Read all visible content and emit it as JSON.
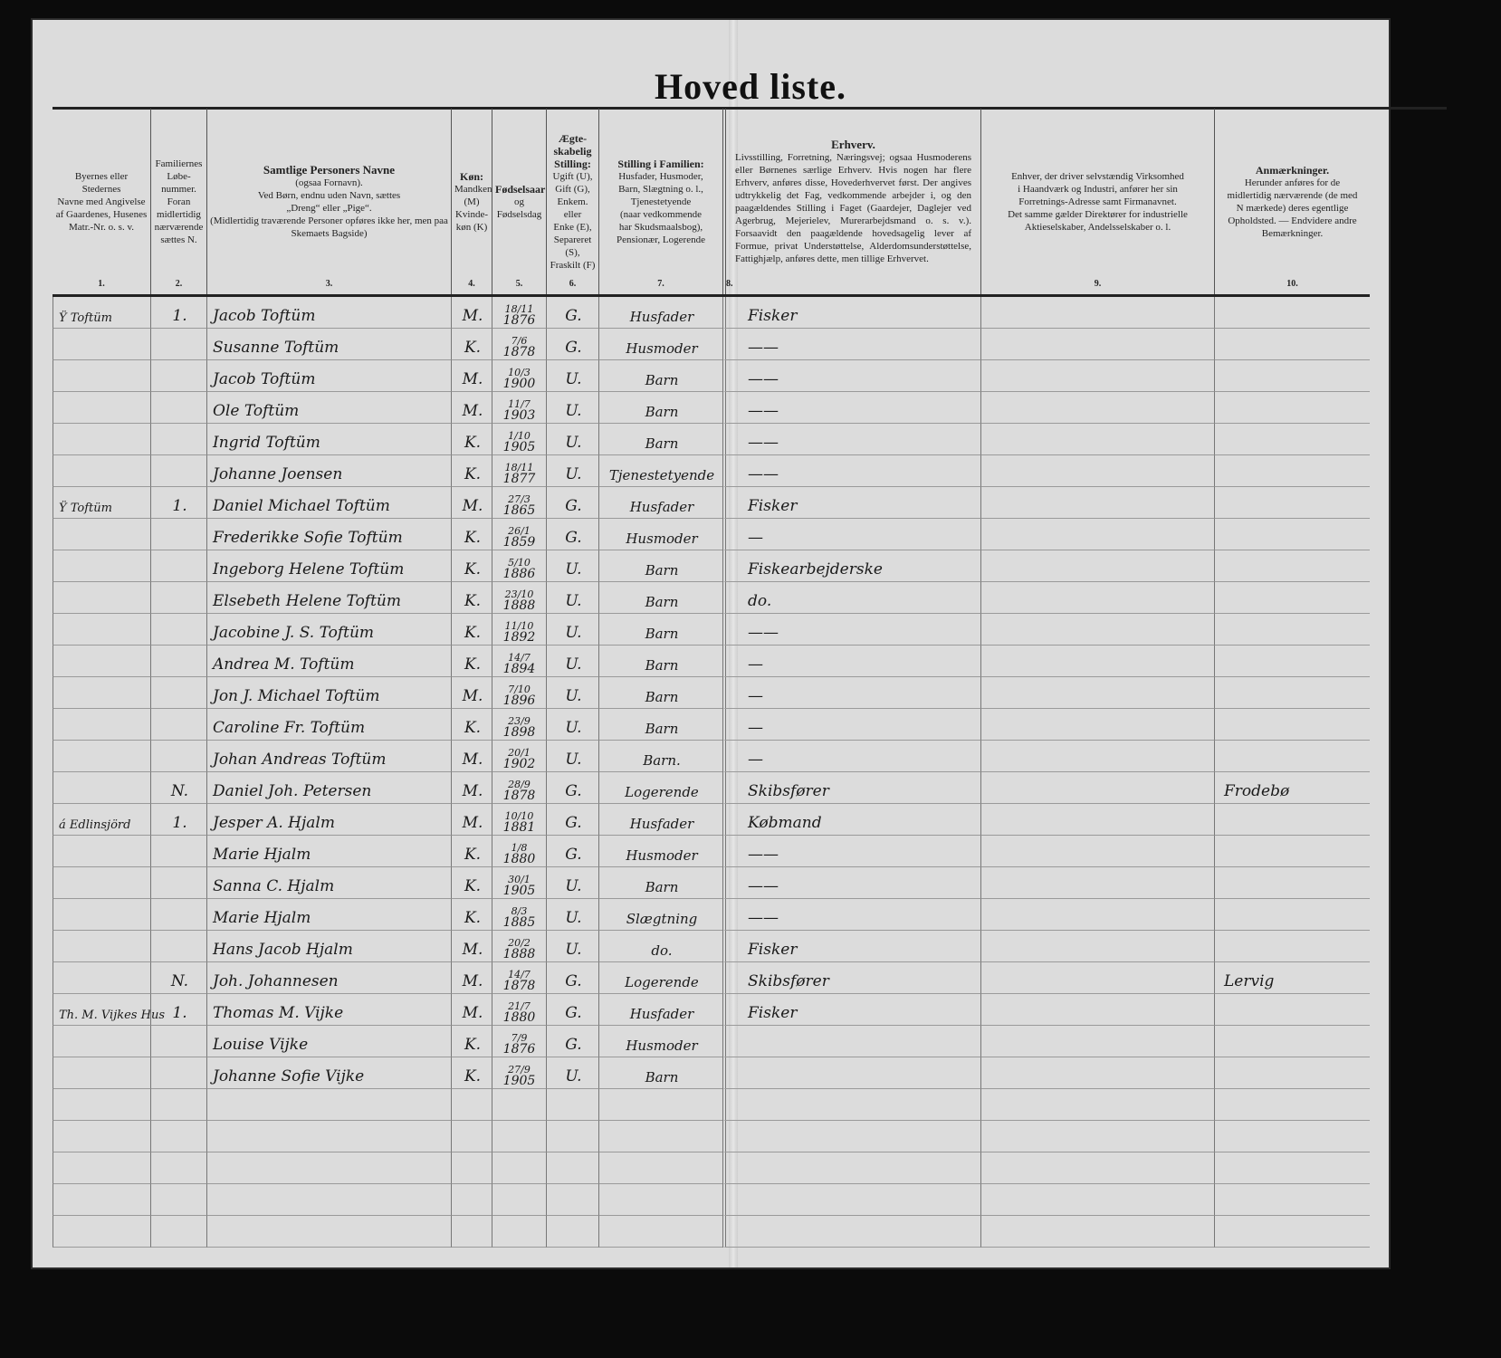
{
  "title": "Hoved liste.",
  "columns": [
    {
      "number": "1.",
      "lines": [
        "Byernes eller Stedernes",
        "Navne med Angivelse",
        "af Gaardenes, Husenes",
        "Matr.-Nr. o. s. v."
      ]
    },
    {
      "number": "2.",
      "lines": [
        "Familiernes",
        "Løbe-",
        "nummer.",
        "Foran",
        "midlertidig",
        "nærværende",
        "sættes N."
      ]
    },
    {
      "number": "3.",
      "heading": "Samtlige Personers Navne",
      "lines": [
        "(ogsaa Fornavn).",
        "Ved Børn, endnu uden Navn, sættes",
        "„Dreng“ eller „Pige“.",
        "(Midlertidig traværende Personer opføres ikke her, men paa Skemaets Bagside)"
      ]
    },
    {
      "number": "4.",
      "heading": "Køn:",
      "lines": [
        "Mandken",
        "(M)",
        "Kvinde-",
        "køn (K)"
      ]
    },
    {
      "number": "5.",
      "heading": "Fødselsaar",
      "lines": [
        "og",
        "Fødselsdag"
      ]
    },
    {
      "number": "6.",
      "heading": "Ægte-skabelig Stilling:",
      "lines": [
        "Ugift (U),",
        "Gift (G),",
        "Enkem. eller",
        "Enke (E),",
        "Separeret",
        "(S),",
        "Fraskilt (F)"
      ]
    },
    {
      "number": "7.",
      "heading": "Stilling i Familien:",
      "lines": [
        "Husfader, Husmoder,",
        "Barn, Slægtning o. l.,",
        "Tjenestetyende",
        "(naar vedkommende",
        "har Skudsmaalsbog),",
        "Pensionær, Logerende"
      ]
    },
    {
      "number": "8.",
      "heading": "Erhverv.",
      "lines": [
        "Livsstilling, Forretning, Næringsvej; ogsaa Husmoderens eller Børnenes særlige Erhverv. Hvis nogen har flere Erhverv, anføres disse, Hovederhvervet først. Der angives udtrykkelig det Fag, vedkommende arbejder i, og den paagældendes Stilling i Faget (Gaardejer, Daglejer ved Agerbrug, Mejerielev, Murerarbejdsmand o. s. v.). Forsaavidt den paagældende hovedsagelig lever af Formue, privat Understøttelse, Alderdomsunderstøttelse, Fattighjælp, anføres dette, men tillige Erhvervet."
      ]
    },
    {
      "number": "9.",
      "lines": [
        "Enhver, der driver selvstændig Virksomhed",
        "i Haandværk og Industri, anfører her sin",
        "Forretnings-Adresse samt Firmanavnet.",
        "Det samme gælder Direktører for industrielle",
        "Aktieselskaber, Andelsselskaber o. l."
      ]
    },
    {
      "number": "10.",
      "heading": "Anmærkninger.",
      "lines": [
        "Herunder anføres for de",
        "midlertidig nærværende (de med",
        "N mærkede) deres egentlige",
        "Opholdsted. — Endvidere andre",
        "Bemærkninger."
      ]
    }
  ],
  "rows": [
    {
      "place": "Ÿ Toftüm",
      "family_no": "1.",
      "name": "Jacob Toftüm",
      "sex": "M.",
      "birth_day": "18/11",
      "birth_year": "1876",
      "marital": "G.",
      "position": "Husfader",
      "occupation": "Fisker",
      "business": "",
      "remarks": ""
    },
    {
      "place": "",
      "family_no": "",
      "name": "Susanne Toftüm",
      "sex": "K.",
      "birth_day": "7/6",
      "birth_year": "1878",
      "marital": "G.",
      "position": "Husmoder",
      "occupation": "——",
      "business": "",
      "remarks": ""
    },
    {
      "place": "",
      "family_no": "",
      "name": "Jacob Toftüm",
      "sex": "M.",
      "birth_day": "10/3",
      "birth_year": "1900",
      "marital": "U.",
      "position": "Barn",
      "occupation": "——",
      "business": "",
      "remarks": ""
    },
    {
      "place": "",
      "family_no": "",
      "name": "Ole Toftüm",
      "sex": "M.",
      "birth_day": "11/7",
      "birth_year": "1903",
      "marital": "U.",
      "position": "Barn",
      "occupation": "——",
      "business": "",
      "remarks": ""
    },
    {
      "place": "",
      "family_no": "",
      "name": "Ingrid Toftüm",
      "sex": "K.",
      "birth_day": "1/10",
      "birth_year": "1905",
      "marital": "U.",
      "position": "Barn",
      "occupation": "——",
      "business": "",
      "remarks": ""
    },
    {
      "place": "",
      "family_no": "",
      "name": "Johanne Joensen",
      "sex": "K.",
      "birth_day": "18/11",
      "birth_year": "1877",
      "marital": "U.",
      "position": "Tjenestetyende",
      "occupation": "——",
      "business": "",
      "remarks": ""
    },
    {
      "place": "Ÿ Toftüm",
      "family_no": "1.",
      "name": "Daniel Michael Toftüm",
      "sex": "M.",
      "birth_day": "27/3",
      "birth_year": "1865",
      "marital": "G.",
      "position": "Husfader",
      "occupation": "Fisker",
      "business": "",
      "remarks": ""
    },
    {
      "place": "",
      "family_no": "",
      "name": "Frederikke Sofie Toftüm",
      "sex": "K.",
      "birth_day": "26/1",
      "birth_year": "1859",
      "marital": "G.",
      "position": "Husmoder",
      "occupation": "—",
      "business": "",
      "remarks": ""
    },
    {
      "place": "",
      "family_no": "",
      "name": "Ingeborg Helene Toftüm",
      "sex": "K.",
      "birth_day": "5/10",
      "birth_year": "1886",
      "marital": "U.",
      "position": "Barn",
      "occupation": "Fiskearbejderske",
      "business": "",
      "remarks": ""
    },
    {
      "place": "",
      "family_no": "",
      "name": "Elsebeth Helene Toftüm",
      "sex": "K.",
      "birth_day": "23/10",
      "birth_year": "1888",
      "marital": "U.",
      "position": "Barn",
      "occupation": "do.",
      "business": "",
      "remarks": ""
    },
    {
      "place": "",
      "family_no": "",
      "name": "Jacobine J. S. Toftüm",
      "sex": "K.",
      "birth_day": "11/10",
      "birth_year": "1892",
      "marital": "U.",
      "position": "Barn",
      "occupation": "——",
      "business": "",
      "remarks": ""
    },
    {
      "place": "",
      "family_no": "",
      "name": "Andrea M. Toftüm",
      "sex": "K.",
      "birth_day": "14/7",
      "birth_year": "1894",
      "marital": "U.",
      "position": "Barn",
      "occupation": "—",
      "business": "",
      "remarks": ""
    },
    {
      "place": "",
      "family_no": "",
      "name": "Jon J. Michael Toftüm",
      "sex": "M.",
      "birth_day": "7/10",
      "birth_year": "1896",
      "marital": "U.",
      "position": "Barn",
      "occupation": "—",
      "business": "",
      "remarks": ""
    },
    {
      "place": "",
      "family_no": "",
      "name": "Caroline Fr. Toftüm",
      "sex": "K.",
      "birth_day": "23/9",
      "birth_year": "1898",
      "marital": "U.",
      "position": "Barn",
      "occupation": "—",
      "business": "",
      "remarks": ""
    },
    {
      "place": "",
      "family_no": "",
      "name": "Johan Andreas Toftüm",
      "sex": "M.",
      "birth_day": "20/1",
      "birth_year": "1902",
      "marital": "U.",
      "position": "Barn.",
      "occupation": "—",
      "business": "",
      "remarks": ""
    },
    {
      "place": "",
      "family_no": "N.",
      "name": "Daniel Joh. Petersen",
      "sex": "M.",
      "birth_day": "28/9",
      "birth_year": "1878",
      "marital": "G.",
      "position": "Logerende",
      "occupation": "Skibsfører",
      "business": "",
      "remarks": "Frodebø"
    },
    {
      "place": "á Edlinsjörd",
      "family_no": "1.",
      "name": "Jesper A. Hjalm",
      "sex": "M.",
      "birth_day": "10/10",
      "birth_year": "1881",
      "marital": "G.",
      "position": "Husfader",
      "occupation": "Købmand",
      "business": "",
      "remarks": ""
    },
    {
      "place": "",
      "family_no": "",
      "name": "Marie Hjalm",
      "sex": "K.",
      "birth_day": "1/8",
      "birth_year": "1880",
      "marital": "G.",
      "position": "Husmoder",
      "occupation": "——",
      "business": "",
      "remarks": ""
    },
    {
      "place": "",
      "family_no": "",
      "name": "Sanna C. Hjalm",
      "sex": "K.",
      "birth_day": "30/1",
      "birth_year": "1905",
      "marital": "U.",
      "position": "Barn",
      "occupation": "——",
      "business": "",
      "remarks": ""
    },
    {
      "place": "",
      "family_no": "",
      "name": "Marie Hjalm",
      "sex": "K.",
      "birth_day": "8/3",
      "birth_year": "1885",
      "marital": "U.",
      "position": "Slægtning",
      "occupation": "——",
      "business": "",
      "remarks": ""
    },
    {
      "place": "",
      "family_no": "",
      "name": "Hans Jacob Hjalm",
      "sex": "M.",
      "birth_day": "20/2",
      "birth_year": "1888",
      "marital": "U.",
      "position": "do.",
      "occupation": "Fisker",
      "business": "",
      "remarks": ""
    },
    {
      "place": "",
      "family_no": "N.",
      "name": "Joh. Johannesen",
      "sex": "M.",
      "birth_day": "14/7",
      "birth_year": "1878",
      "marital": "G.",
      "position": "Logerende",
      "occupation": "Skibsfører",
      "business": "",
      "remarks": "Lervig"
    },
    {
      "place": "Th. M. Vijkes Hus",
      "family_no": "1.",
      "name": "Thomas M. Vijke",
      "sex": "M.",
      "birth_day": "21/7",
      "birth_year": "1880",
      "marital": "G.",
      "position": "Husfader",
      "occupation": "Fisker",
      "business": "",
      "remarks": ""
    },
    {
      "place": "",
      "family_no": "",
      "name": "Louise Vijke",
      "sex": "K.",
      "birth_day": "7/9",
      "birth_year": "1876",
      "marital": "G.",
      "position": "Husmoder",
      "occupation": "",
      "business": "",
      "remarks": ""
    },
    {
      "place": "",
      "family_no": "",
      "name": "Johanne Sofie Vijke",
      "sex": "K.",
      "birth_day": "27/9",
      "birth_year": "1905",
      "marital": "U.",
      "position": "Barn",
      "occupation": "",
      "business": "",
      "remarks": ""
    }
  ],
  "blank_rows": 5
}
